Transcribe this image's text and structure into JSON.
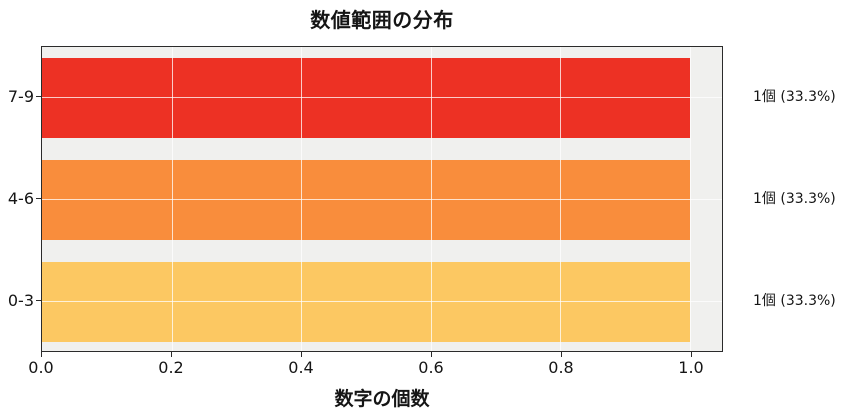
{
  "figure": {
    "background": "#ffffff",
    "plot_background": "#f0f0ee",
    "spine_color": "#2b2b2b",
    "text_color": "#151515",
    "grid_color": "rgba(255,255,255,0.75)"
  },
  "chart_data": {
    "type": "bar",
    "orientation": "horizontal",
    "title": "数値範囲の分布",
    "xlabel": "数字の個数",
    "ylabel": "",
    "categories": [
      "7-9",
      "4-6",
      "0-3"
    ],
    "values": [
      1.0,
      1.0,
      1.0
    ],
    "bar_labels": [
      "1個 (33.3%)",
      "1個 (33.3%)",
      "1個 (33.3%)"
    ],
    "bar_colors": [
      "#ed3124",
      "#f98d3c",
      "#fcc862"
    ],
    "xlim": [
      0,
      1.05
    ],
    "x_ticks": [
      0.0,
      0.2,
      0.4,
      0.6,
      0.8,
      1.0
    ],
    "x_tick_labels": [
      "0.0",
      "0.2",
      "0.4",
      "0.6",
      "0.8",
      "1.0"
    ],
    "grid": true,
    "grid_over_bars": true,
    "legend": false
  }
}
